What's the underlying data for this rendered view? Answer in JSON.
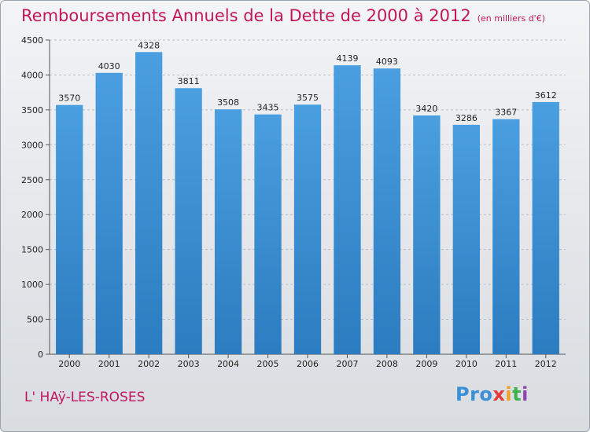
{
  "title": "Remboursements Annuels de la Dette de 2000 à 2012",
  "subtitle": "(en milliers d'€)",
  "place": "L' HAÿ-LES-ROSES",
  "logo": {
    "p1": "Pro",
    "p2": "x",
    "p3": "i",
    "p4": "t",
    "p5": "i"
  },
  "colors": {
    "bar": "#4a9fe0",
    "bar_dark": "#2b7cc0",
    "title": "#c2185b",
    "grid": "#b9bec5"
  },
  "chart_data": {
    "type": "bar",
    "title": "Remboursements Annuels de la Dette de 2000 à 2012",
    "subtitle": "(en milliers d'€)",
    "xlabel": "",
    "ylabel": "",
    "categories": [
      "2000",
      "2001",
      "2002",
      "2003",
      "2004",
      "2005",
      "2006",
      "2007",
      "2008",
      "2009",
      "2010",
      "2011",
      "2012"
    ],
    "values": [
      3570,
      4030,
      4328,
      3811,
      3508,
      3435,
      3575,
      4139,
      4093,
      3420,
      3286,
      3367,
      3612
    ],
    "ylim": [
      0,
      4500
    ],
    "yticks": [
      0,
      500,
      1000,
      1500,
      2000,
      2500,
      3000,
      3500,
      4000,
      4500
    ],
    "grid": true,
    "data_labels": true
  }
}
